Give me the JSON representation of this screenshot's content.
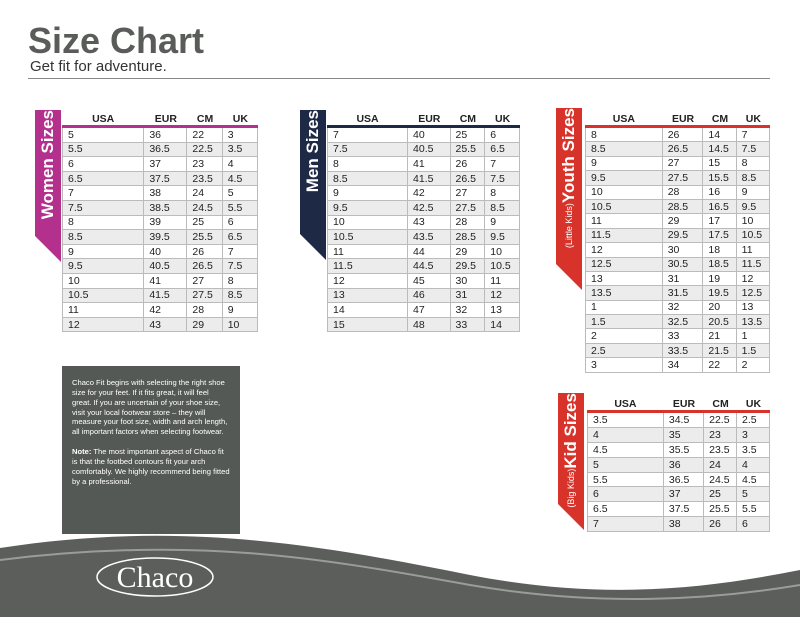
{
  "header": {
    "title": "Size Chart",
    "subtitle": "Get fit for adventure."
  },
  "tables": [
    {
      "label": "Women Sizes",
      "columns": [
        "USA",
        "EUR",
        "CM",
        "UK"
      ],
      "rows": [
        [
          "5",
          "36",
          "22",
          "3"
        ],
        [
          "5.5",
          "36.5",
          "22.5",
          "3.5"
        ],
        [
          "6",
          "37",
          "23",
          "4"
        ],
        [
          "6.5",
          "37.5",
          "23.5",
          "4.5"
        ],
        [
          "7",
          "38",
          "24",
          "5"
        ],
        [
          "7.5",
          "38.5",
          "24.5",
          "5.5"
        ],
        [
          "8",
          "39",
          "25",
          "6"
        ],
        [
          "8.5",
          "39.5",
          "25.5",
          "6.5"
        ],
        [
          "9",
          "40",
          "26",
          "7"
        ],
        [
          "9.5",
          "40.5",
          "26.5",
          "7.5"
        ],
        [
          "10",
          "41",
          "27",
          "8"
        ],
        [
          "10.5",
          "41.5",
          "27.5",
          "8.5"
        ],
        [
          "11",
          "42",
          "28",
          "9"
        ],
        [
          "12",
          "43",
          "29",
          "10"
        ]
      ]
    },
    {
      "label": "Men Sizes",
      "columns": [
        "USA",
        "EUR",
        "CM",
        "UK"
      ],
      "rows": [
        [
          "7",
          "40",
          "25",
          "6"
        ],
        [
          "7.5",
          "40.5",
          "25.5",
          "6.5"
        ],
        [
          "8",
          "41",
          "26",
          "7"
        ],
        [
          "8.5",
          "41.5",
          "26.5",
          "7.5"
        ],
        [
          "9",
          "42",
          "27",
          "8"
        ],
        [
          "9.5",
          "42.5",
          "27.5",
          "8.5"
        ],
        [
          "10",
          "43",
          "28",
          "9"
        ],
        [
          "10.5",
          "43.5",
          "28.5",
          "9.5"
        ],
        [
          "11",
          "44",
          "29",
          "10"
        ],
        [
          "11.5",
          "44.5",
          "29.5",
          "10.5"
        ],
        [
          "12",
          "45",
          "30",
          "11"
        ],
        [
          "13",
          "46",
          "31",
          "12"
        ],
        [
          "14",
          "47",
          "32",
          "13"
        ],
        [
          "15",
          "48",
          "33",
          "14"
        ]
      ]
    },
    {
      "label": "Youth Sizes",
      "sublabel": "(Little Kids)",
      "columns": [
        "USA",
        "EUR",
        "CM",
        "UK"
      ],
      "rows": [
        [
          "8",
          "26",
          "14",
          "7"
        ],
        [
          "8.5",
          "26.5",
          "14.5",
          "7.5"
        ],
        [
          "9",
          "27",
          "15",
          "8"
        ],
        [
          "9.5",
          "27.5",
          "15.5",
          "8.5"
        ],
        [
          "10",
          "28",
          "16",
          "9"
        ],
        [
          "10.5",
          "28.5",
          "16.5",
          "9.5"
        ],
        [
          "11",
          "29",
          "17",
          "10"
        ],
        [
          "11.5",
          "29.5",
          "17.5",
          "10.5"
        ],
        [
          "12",
          "30",
          "18",
          "11"
        ],
        [
          "12.5",
          "30.5",
          "18.5",
          "11.5"
        ],
        [
          "13",
          "31",
          "19",
          "12"
        ],
        [
          "13.5",
          "31.5",
          "19.5",
          "12.5"
        ],
        [
          "1",
          "32",
          "20",
          "13"
        ],
        [
          "1.5",
          "32.5",
          "20.5",
          "13.5"
        ],
        [
          "2",
          "33",
          "21",
          "1"
        ],
        [
          "2.5",
          "33.5",
          "21.5",
          "1.5"
        ],
        [
          "3",
          "34",
          "22",
          "2"
        ]
      ]
    },
    {
      "label": "Kid Sizes",
      "sublabel": "(Big Kids)",
      "columns": [
        "USA",
        "EUR",
        "CM",
        "UK"
      ],
      "rows": [
        [
          "3.5",
          "34.5",
          "22.5",
          "2.5"
        ],
        [
          "4",
          "35",
          "23",
          "3"
        ],
        [
          "4.5",
          "35.5",
          "23.5",
          "3.5"
        ],
        [
          "5",
          "36",
          "24",
          "4"
        ],
        [
          "5.5",
          "36.5",
          "24.5",
          "4.5"
        ],
        [
          "6",
          "37",
          "25",
          "5"
        ],
        [
          "6.5",
          "37.5",
          "25.5",
          "5.5"
        ],
        [
          "7",
          "38",
          "26",
          "6"
        ]
      ]
    }
  ],
  "info": {
    "text": "Chaco Fit begins with selecting the right shoe size for your feet. If it fits great, it will feel great. If you are uncertain of your shoe size, visit your local footwear store – they will measure your foot size, width and arch length, all important factors when selecting footwear.",
    "note_label": "Note:",
    "note": "The most important aspect of Chaco fit is that the footbed contours fit your arch comfortably. We highly recommend being fitted by a professional."
  },
  "logo": "Chaco"
}
